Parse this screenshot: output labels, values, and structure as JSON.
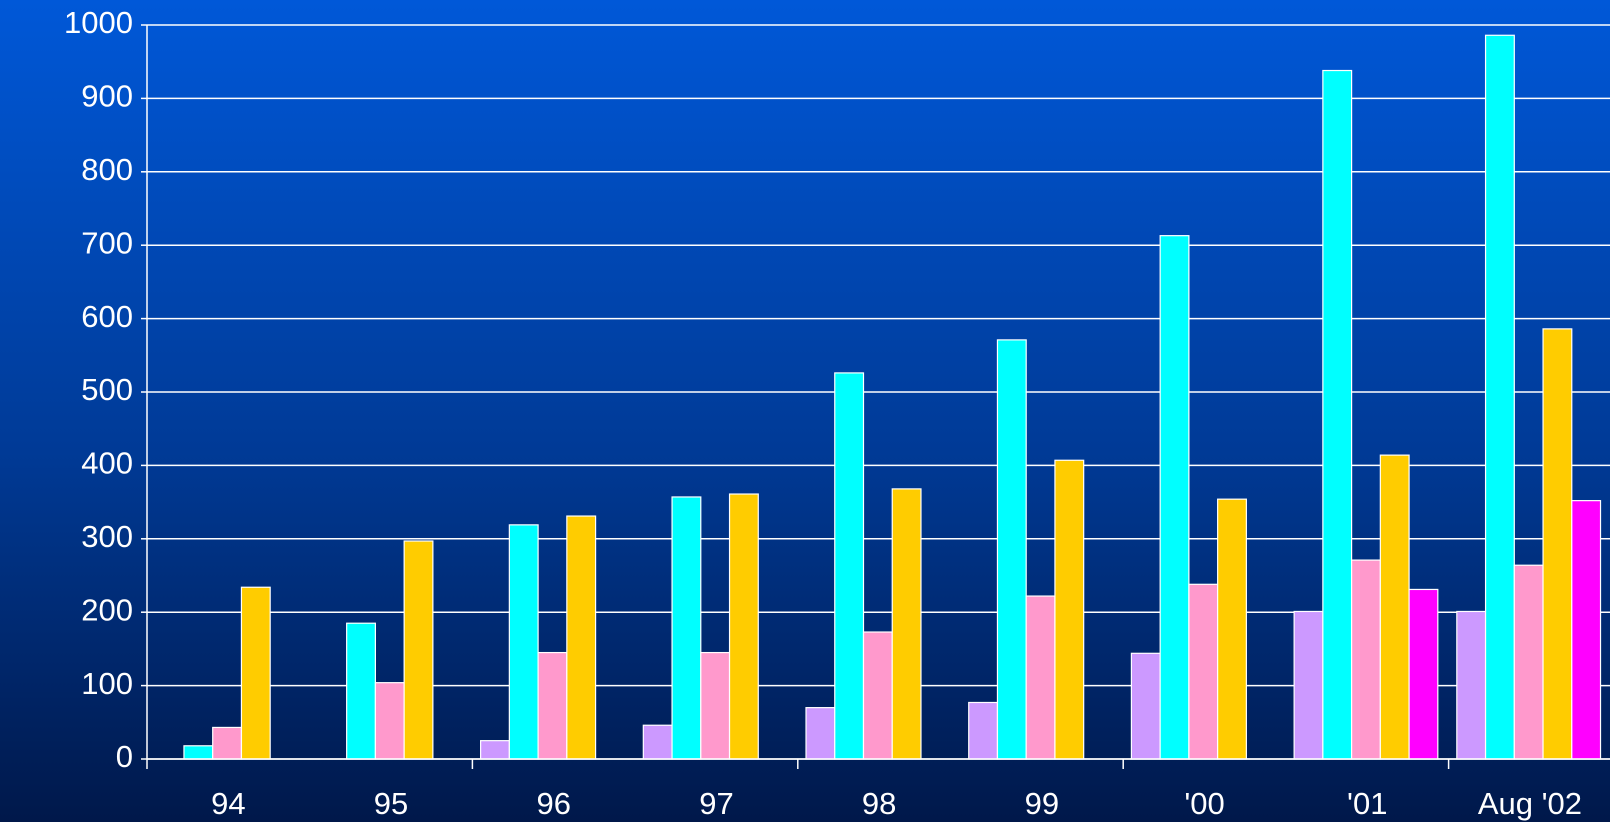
{
  "chart_data": {
    "type": "bar",
    "categories": [
      "94",
      "95",
      "96",
      "97",
      "98",
      "99",
      "'00",
      "'01",
      "Aug '02"
    ],
    "series": [
      {
        "color": "#cc99ff",
        "values": [
          null,
          null,
          25,
          46,
          70,
          77,
          144,
          201,
          201
        ]
      },
      {
        "color": "#00ffff",
        "values": [
          18,
          185,
          319,
          357,
          526,
          571,
          713,
          938,
          986
        ]
      },
      {
        "color": "#ff99cc",
        "values": [
          43,
          104,
          145,
          145,
          173,
          222,
          238,
          271,
          264
        ]
      },
      {
        "color": "#ffcc00",
        "values": [
          234,
          297,
          331,
          361,
          368,
          407,
          354,
          414,
          586
        ]
      },
      {
        "color": "#ff00ff",
        "values": [
          null,
          null,
          null,
          null,
          null,
          null,
          null,
          231,
          352
        ]
      }
    ],
    "ylim": [
      0,
      1000
    ],
    "yticks": [
      0,
      100,
      200,
      300,
      400,
      500,
      600,
      700,
      800,
      900,
      1000
    ],
    "grid": true
  }
}
